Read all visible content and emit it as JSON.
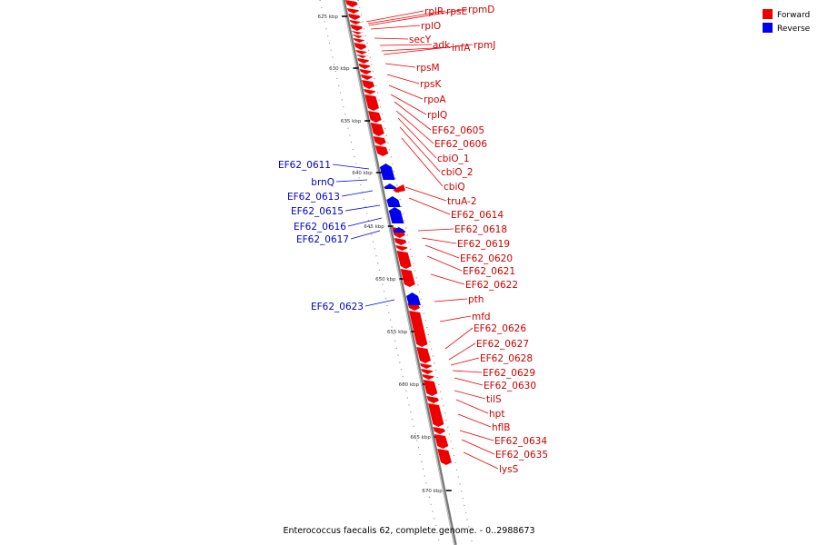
{
  "caption": "Enterococcus faecalis 62, complete genome. - 0..2988673",
  "legend": [
    {
      "label": "Forward",
      "color": "#ee0000"
    },
    {
      "label": "Reverse",
      "color": "#0000ee"
    }
  ],
  "scale_ticks": [
    "625 kbp",
    "630 kbp",
    "635 kbp",
    "640 kbp",
    "645 kbp",
    "650 kbp",
    "655 kbp",
    "660 kbp",
    "665 kbp",
    "670 kbp"
  ],
  "forward_genes": [
    "rplR",
    "rpsE",
    "rpmD",
    "rplO",
    "secY",
    "adk",
    "infA",
    "rpmJ",
    "rpsM",
    "rpsK",
    "rpoA",
    "rplQ",
    "EF62_0605",
    "EF62_0606",
    "cbiO_1",
    "cbiO_2",
    "cbiQ",
    "truA-2",
    "EF62_0614",
    "EF62_0618",
    "EF62_0619",
    "EF62_0620",
    "EF62_0621",
    "EF62_0622",
    "pth",
    "mfd",
    "EF62_0626",
    "EF62_0627",
    "EF62_0628",
    "EF62_0629",
    "EF62_0630",
    "tilS",
    "hpt",
    "hflB",
    "EF62_0634",
    "EF62_0635",
    "lysS"
  ],
  "reverse_genes": [
    "EF62_0611",
    "brnQ",
    "EF62_0613",
    "EF62_0615",
    "EF62_0616",
    "EF62_0617",
    "EF62_0623"
  ]
}
